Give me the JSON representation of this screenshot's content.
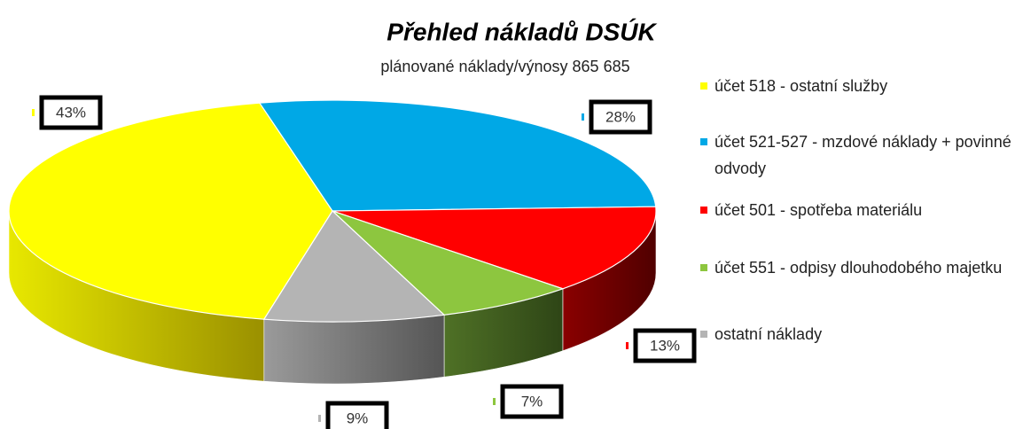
{
  "chart_data": {
    "type": "pie",
    "title": "Přehled nákladů DSÚK",
    "subtitle": "plánované náklady/výnosy 865 685",
    "categories": [
      "účet 518 - ostatní služby",
      "účet 521-527 - mzdové náklady + povinné odvody",
      "účet 501 - spotřeba materiálu",
      "účet 551 - odpisy dlouhodobého majetku",
      "ostatní náklady"
    ],
    "values": [
      43,
      28,
      13,
      7,
      9
    ],
    "value_labels": [
      "43%",
      "28%",
      "13%",
      "7%",
      "9%"
    ],
    "colors": [
      "#ffff00",
      "#00a8e6",
      "#ff0000",
      "#8dc63f",
      "#b4b4b4"
    ],
    "legend": "right"
  }
}
